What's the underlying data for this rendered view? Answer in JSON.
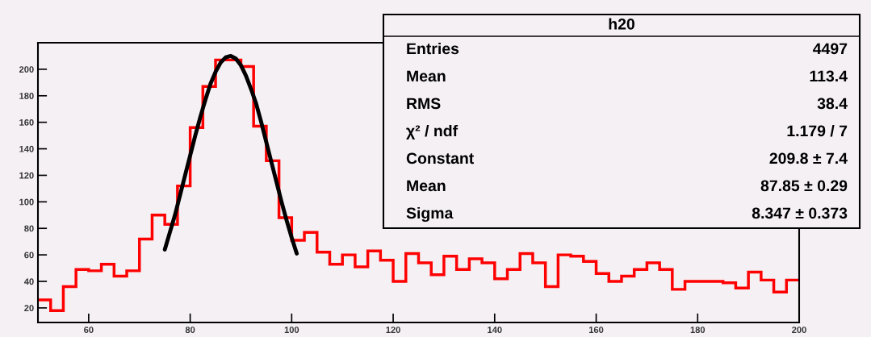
{
  "chart_data": {
    "type": "histogram",
    "title": "h20",
    "bins": [
      50,
      52.5,
      55,
      57.5,
      60,
      62.5,
      65,
      67.5,
      70,
      72.5,
      75,
      77.5,
      80,
      82.5,
      85,
      87.5,
      90,
      92.5,
      95,
      97.5,
      100,
      102.5,
      105,
      107.5,
      110,
      112.5,
      115,
      117.5,
      120,
      122.5,
      125,
      127.5,
      130,
      132.5,
      135,
      137.5,
      140,
      142.5,
      145,
      147.5,
      150,
      152.5,
      155,
      157.5,
      160,
      162.5,
      165,
      167.5,
      170,
      172.5,
      175,
      177.5,
      180,
      182.5,
      185,
      187.5,
      190,
      192.5,
      195,
      197.5,
      200
    ],
    "series": [
      {
        "color": "#ff0000",
        "values": [
          26,
          18,
          36,
          49,
          48,
          53,
          44,
          48,
          72,
          90,
          83,
          112,
          156,
          187,
          207,
          207,
          202,
          157,
          131,
          88,
          71,
          77,
          62,
          53,
          60,
          51,
          63,
          56,
          40,
          61,
          54,
          45,
          59,
          49,
          57,
          54,
          42,
          49,
          61,
          54,
          36,
          60,
          59,
          55,
          46,
          40,
          44,
          49,
          54,
          49,
          34,
          40,
          40,
          40,
          39,
          35,
          47,
          41,
          32,
          41
        ]
      },
      {
        "type": "line",
        "color": "#000000",
        "x": [
          75,
          76,
          77,
          78,
          79,
          80,
          81,
          82,
          83,
          84,
          85,
          86,
          87,
          88,
          89,
          90,
          91,
          92,
          93,
          94,
          95,
          96,
          97,
          98,
          99,
          100,
          101
        ],
        "values": [
          64,
          77,
          90,
          105,
          120,
          135,
          150,
          164,
          177,
          189,
          198,
          205,
          209,
          210,
          208,
          203,
          195,
          185,
          174,
          160,
          145,
          130,
          115,
          100,
          86,
          73,
          61
        ]
      }
    ],
    "xlim": [
      50,
      200
    ],
    "xticks": [
      60,
      80,
      100,
      120,
      140,
      160,
      180,
      200
    ],
    "ylim": [
      9,
      220
    ],
    "yticks": [
      20,
      40,
      60,
      80,
      100,
      120,
      140,
      160,
      180,
      200
    ],
    "grid": false,
    "annotations": [
      "Entries",
      "4497",
      "Mean",
      "113.4",
      "RMS",
      "38.4",
      "χ² / ndf",
      "1.179 / 7",
      "Constant",
      "209.8 ± 7.4",
      "Mean",
      "87.85 ± 0.29",
      "Sigma",
      "8.347 ± 0.373"
    ]
  }
}
